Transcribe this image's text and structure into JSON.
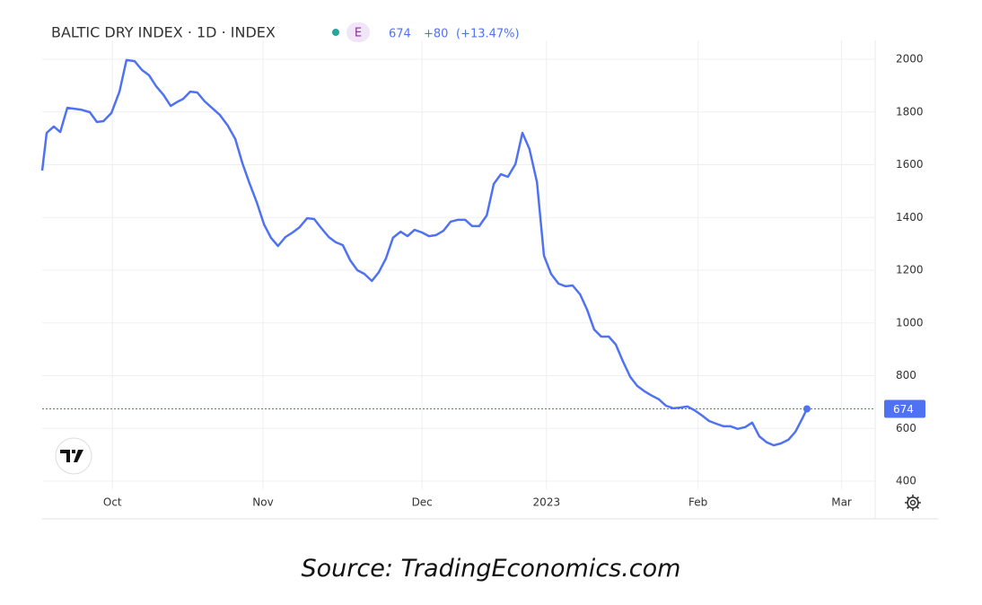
{
  "header": {
    "title": "BALTIC DRY INDEX · 1D · INDEX",
    "badge": "E",
    "change": "+80",
    "change_pct": "(+13.47%)"
  },
  "chart_data": {
    "type": "line",
    "color": "#4f72f2",
    "last_value": 674,
    "grid": true,
    "x": [
      0,
      0.9,
      2.3,
      3.6,
      5.0,
      7.7,
      9.5,
      10.9,
      12.2,
      13.8,
      15.4,
      16.8,
      18.4,
      19.9,
      21.3,
      22.7,
      24.2,
      25.6,
      26.8,
      28.1,
      29.5,
      30.9,
      32.4,
      33.8,
      35.4,
      37.0,
      38.5,
      39.9,
      41.3,
      42.8,
      44.2,
      45.6,
      47.0,
      48.5,
      49.9,
      51.3,
      52.8,
      54.2,
      55.6,
      57.1,
      58.5,
      59.9,
      61.4,
      62.8,
      64.2,
      65.7,
      67.1,
      68.5,
      69.9,
      71.4,
      72.8,
      74.2,
      75.7,
      77.1,
      78.5,
      80.0,
      81.4,
      82.8,
      84.3,
      85.7,
      87.1,
      88.6,
      90.0,
      91.4,
      92.8,
      94.3,
      95.7,
      97.1,
      98.6,
      100.0,
      101.4,
      102.9,
      104.3,
      105.7,
      107.2,
      108.6,
      110.0,
      111.4,
      112.9,
      114.3,
      115.7,
      117.2,
      118.6,
      120.0,
      121.5,
      122.9,
      124.3,
      125.8,
      127.2,
      128.6,
      130.0,
      131.5,
      132.9,
      134.3,
      135.8,
      137.2,
      138.6,
      140.1,
      141.5,
      142.9,
      144.4,
      145.8,
      147.2,
      148.7,
      150.1,
      151.5,
      152.4
    ],
    "values": [
      1578,
      1721,
      1745,
      1724,
      1816,
      1809,
      1799,
      1762,
      1765,
      1796,
      1877,
      1997,
      1993,
      1959,
      1939,
      1898,
      1864,
      1823,
      1837,
      1850,
      1877,
      1874,
      1840,
      1816,
      1789,
      1748,
      1697,
      1605,
      1530,
      1455,
      1374,
      1323,
      1292,
      1326,
      1343,
      1363,
      1397,
      1394,
      1360,
      1326,
      1306,
      1295,
      1237,
      1200,
      1186,
      1159,
      1193,
      1244,
      1323,
      1346,
      1329,
      1353,
      1343,
      1329,
      1333,
      1350,
      1384,
      1391,
      1391,
      1367,
      1367,
      1408,
      1527,
      1564,
      1554,
      1602,
      1721,
      1660,
      1534,
      1255,
      1186,
      1149,
      1139,
      1142,
      1108,
      1050,
      975,
      948,
      948,
      918,
      856,
      795,
      761,
      741,
      724,
      710,
      686,
      676,
      679,
      683,
      669,
      649,
      628,
      618,
      608,
      608,
      598,
      605,
      622,
      570,
      547,
      536,
      543,
      557,
      587,
      638,
      674
    ],
    "xlim": [
      0,
      166
    ],
    "xticks": [
      {
        "value": 14,
        "label": "Oct"
      },
      {
        "value": 44,
        "label": "Nov"
      },
      {
        "value": 75.7,
        "label": "Dec"
      },
      {
        "value": 100.5,
        "label": "2023"
      },
      {
        "value": 130.7,
        "label": "Feb"
      },
      {
        "value": 159.3,
        "label": "Mar"
      }
    ],
    "ylim": [
      400,
      2000
    ],
    "yticks": [
      400,
      600,
      800,
      1000,
      1200,
      1400,
      1600,
      1800,
      2000
    ]
  },
  "source": "Source: TradingEconomics.com"
}
